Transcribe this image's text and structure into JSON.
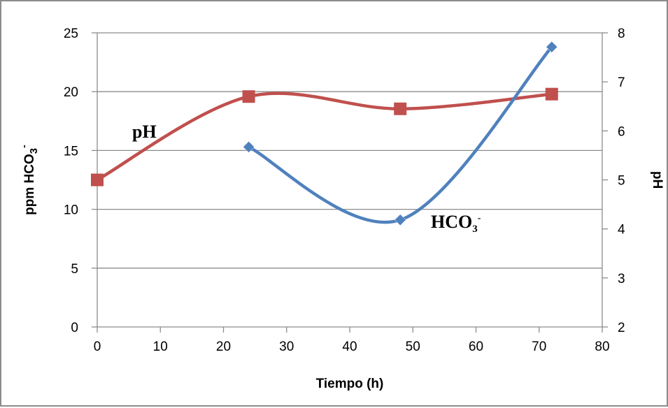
{
  "chart_data": {
    "type": "line",
    "xlabel": "Tiempo (h)",
    "ylabel_left": {
      "main": "ppm HCO",
      "sub": "3",
      "sup": "-"
    },
    "ylabel_right": "pH",
    "xlim": [
      0,
      80
    ],
    "ylim_left": [
      0,
      25
    ],
    "ylim_right": [
      2,
      8
    ],
    "xticks": [
      "0",
      "10",
      "20",
      "30",
      "40",
      "50",
      "60",
      "70",
      "80"
    ],
    "yticks_left": [
      "0",
      "5",
      "10",
      "15",
      "20",
      "25"
    ],
    "yticks_right": [
      "2",
      "3",
      "4",
      "5",
      "6",
      "7",
      "8"
    ],
    "grid": true,
    "legend": "none",
    "series": [
      {
        "label": {
          "main": "pH",
          "sub": "",
          "sup": ""
        },
        "axis": "right",
        "color": "#c0504d",
        "marker": "square",
        "x": [
          0,
          24,
          48,
          72
        ],
        "y": [
          5.0,
          6.7,
          6.45,
          6.75
        ]
      },
      {
        "label": {
          "main": "HCO",
          "sub": "3",
          "sup": "-"
        },
        "axis": "left",
        "color": "#4f81bd",
        "marker": "diamond",
        "x": [
          24,
          48,
          72
        ],
        "y": [
          15.3,
          9.1,
          23.8
        ]
      }
    ]
  }
}
